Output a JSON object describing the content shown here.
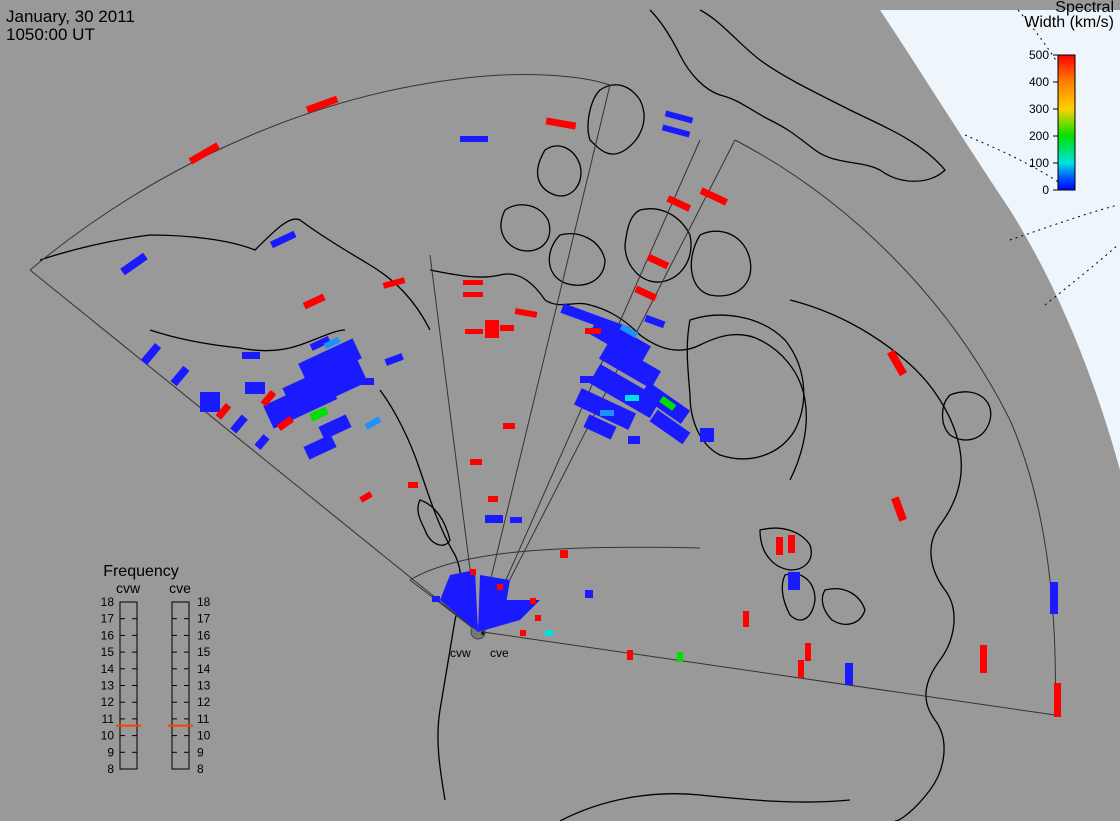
{
  "header": {
    "date": "January, 30 2011",
    "time": "1050:00 UT"
  },
  "colorbar": {
    "title_line1": "Spectral",
    "title_line2": "Width (km/s)",
    "ticks": [
      "500",
      "400",
      "300",
      "200",
      "100",
      "0"
    ],
    "colors": [
      "#ff0000",
      "#ff8000",
      "#ffd000",
      "#00e000",
      "#00e0e0",
      "#0060ff",
      "#0000ff"
    ]
  },
  "frequency": {
    "title": "Frequency",
    "radars": [
      "cvw",
      "cve"
    ],
    "scale": [
      "18",
      "17",
      "16",
      "15",
      "14",
      "13",
      "12",
      "11",
      "10",
      "9",
      "8"
    ],
    "marker_mhz": 10.6,
    "marker_color": "#ff4000"
  },
  "radars": {
    "west_label": "cvw",
    "east_label": "cve"
  },
  "colors": {
    "background": "#999999",
    "land_outline": "#000000",
    "fov_line": "#333333",
    "daylight": "#eef6fc",
    "echo_low": "#1a1aff",
    "echo_high": "#ff0000"
  }
}
